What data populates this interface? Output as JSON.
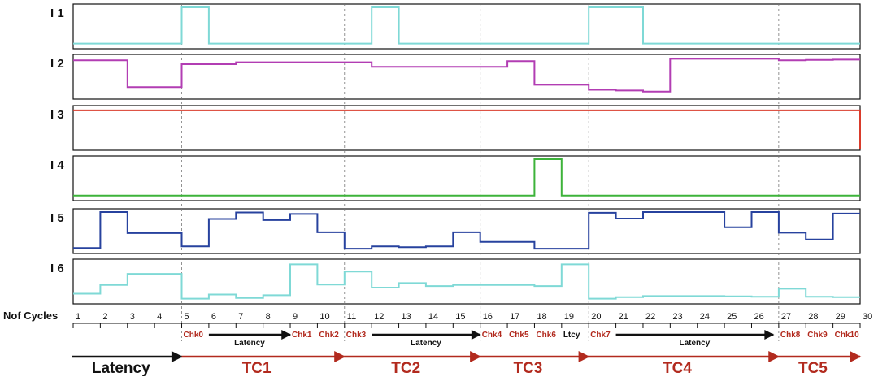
{
  "chart_data": {
    "type": "line",
    "step": true,
    "x_label": "Nof Cycles",
    "x_ticks": [
      "1",
      "2",
      "3",
      "4",
      "5",
      "6",
      "7",
      "8",
      "9",
      "10",
      "11",
      "12",
      "13",
      "14",
      "15",
      "16",
      "17",
      "18",
      "19",
      "20",
      "21",
      "22",
      "23",
      "24",
      "25",
      "26",
      "27",
      "28",
      "29",
      "30"
    ],
    "xlim": [
      1,
      30
    ],
    "ylim": [
      0,
      1
    ],
    "grid_x": [
      5,
      11,
      16,
      20,
      27
    ],
    "series": [
      {
        "name": "I 1",
        "color": "#7fd9d6",
        "values": [
          0.05,
          0.05,
          0.05,
          0.05,
          1.0,
          0.05,
          0.05,
          0.05,
          0.05,
          0.05,
          0.05,
          1.0,
          0.05,
          0.05,
          0.05,
          0.05,
          0.05,
          0.05,
          0.05,
          1.0,
          1.0,
          0.05,
          0.05,
          0.05,
          0.05,
          0.05,
          0.05,
          0.05,
          0.05
        ]
      },
      {
        "name": "I 2",
        "color": "#b23db3",
        "values": [
          0.93,
          0.93,
          0.23,
          0.23,
          0.83,
          0.83,
          0.88,
          0.88,
          0.88,
          0.88,
          0.88,
          0.76,
          0.76,
          0.76,
          0.76,
          0.76,
          0.91,
          0.29,
          0.29,
          0.16,
          0.14,
          0.11,
          0.97,
          0.97,
          0.97,
          0.97,
          0.93,
          0.94,
          0.95
        ]
      },
      {
        "name": "I 3",
        "color": "#d93b2b",
        "values": [
          0.96,
          0.96,
          0.96,
          0.96,
          0.96,
          0.96,
          0.96,
          0.96,
          0.96,
          0.96,
          0.96,
          0.96,
          0.96,
          0.96,
          0.96,
          0.96,
          0.96,
          0.96,
          0.96,
          0.96,
          0.96,
          0.96,
          0.96,
          0.96,
          0.96,
          0.96,
          0.96,
          0.96,
          0.96
        ]
      },
      {
        "name": "I 4",
        "color": "#3db33a",
        "values": [
          0.05,
          0.05,
          0.05,
          0.05,
          0.05,
          0.05,
          0.05,
          0.05,
          0.05,
          0.05,
          0.05,
          0.05,
          0.05,
          0.05,
          0.05,
          0.05,
          0.05,
          1.0,
          0.05,
          0.05,
          0.05,
          0.05,
          0.05,
          0.05,
          0.05,
          0.05,
          0.05,
          0.05,
          0.05
        ]
      },
      {
        "name": "I 5",
        "color": "#27429e",
        "values": [
          0.06,
          1.0,
          0.45,
          0.45,
          0.1,
          0.82,
          0.99,
          0.79,
          0.95,
          0.47,
          0.04,
          0.1,
          0.08,
          0.1,
          0.47,
          0.22,
          0.22,
          0.04,
          0.04,
          0.98,
          0.83,
          1.0,
          1.0,
          1.0,
          0.6,
          1.0,
          0.46,
          0.28,
          0.96
        ]
      },
      {
        "name": "I 6",
        "color": "#7fd9d6",
        "values": [
          0.18,
          0.41,
          0.7,
          0.7,
          0.05,
          0.16,
          0.07,
          0.14,
          0.95,
          0.42,
          0.76,
          0.34,
          0.46,
          0.38,
          0.41,
          0.41,
          0.41,
          0.38,
          0.95,
          0.05,
          0.09,
          0.12,
          0.12,
          0.12,
          0.11,
          0.1,
          0.31,
          0.1,
          0.09,
          0.09
        ]
      }
    ],
    "checkpoints": [
      {
        "label": "Chk0",
        "x": 5
      },
      {
        "label": "Chk1",
        "x": 9
      },
      {
        "label": "Chk2",
        "x": 10
      },
      {
        "label": "Chk3",
        "x": 11
      },
      {
        "label": "Chk4",
        "x": 16
      },
      {
        "label": "Chk5",
        "x": 17
      },
      {
        "label": "Chk6",
        "x": 18
      },
      {
        "label": "Chk7",
        "x": 20
      },
      {
        "label": "Chk8",
        "x": 27
      },
      {
        "label": "Chk9",
        "x": 28
      },
      {
        "label": "Chk10",
        "x": 29
      }
    ],
    "latency_arrows": [
      {
        "label": "Latency",
        "from": 6,
        "to": 9
      },
      {
        "label": "Latency",
        "from": 12,
        "to": 16
      },
      {
        "label": "Latency",
        "from": 21,
        "to": 26.8
      }
    ],
    "ltcy": {
      "label": "Ltcy",
      "x": 19
    },
    "phases": [
      {
        "label": "Latency",
        "from": 1,
        "to": 5,
        "color": "#111111"
      },
      {
        "label": "TC1",
        "from": 5,
        "to": 11,
        "color": "#b22a1e"
      },
      {
        "label": "TC2",
        "from": 11,
        "to": 16,
        "color": "#b22a1e"
      },
      {
        "label": "TC3",
        "from": 16,
        "to": 20,
        "color": "#b22a1e"
      },
      {
        "label": "TC4",
        "from": 20,
        "to": 27,
        "color": "#b22a1e"
      },
      {
        "label": "TC5",
        "from": 27,
        "to": 30,
        "color": "#b22a1e"
      }
    ]
  }
}
